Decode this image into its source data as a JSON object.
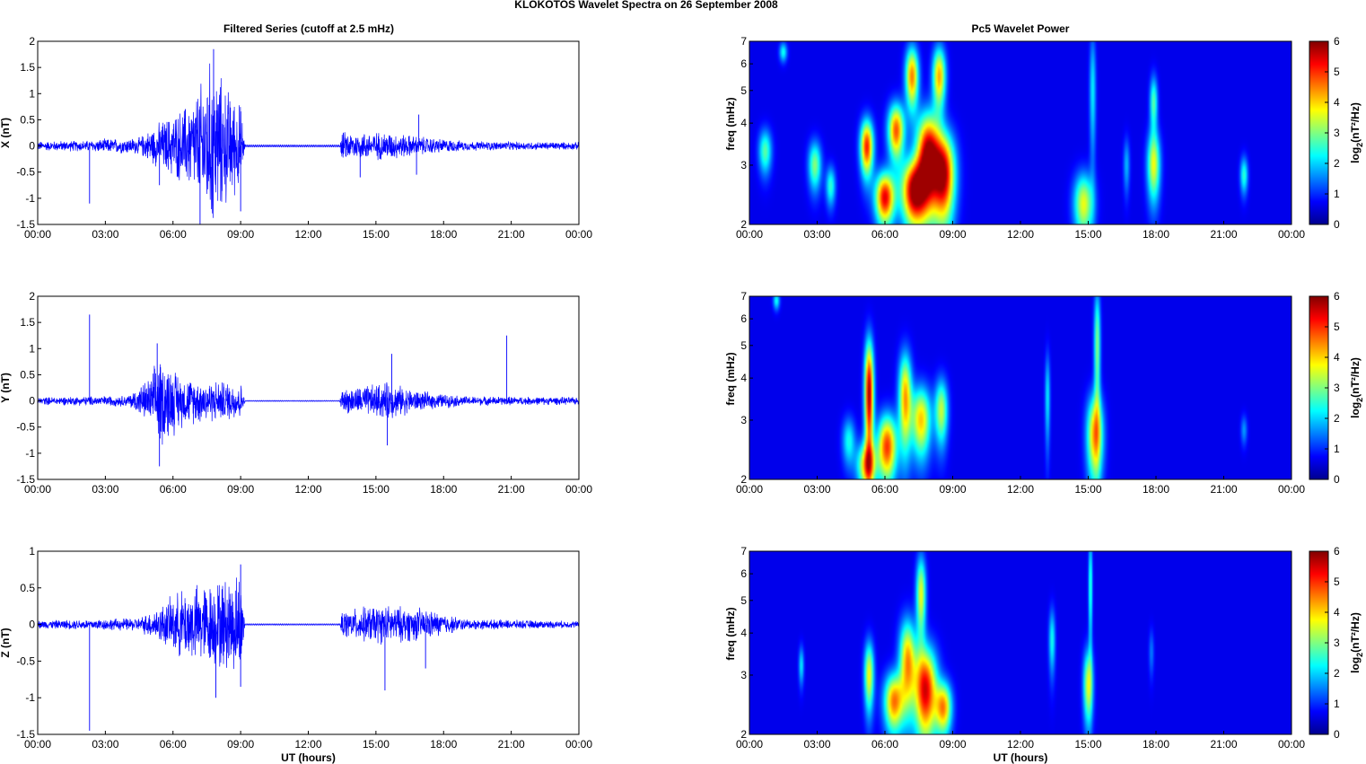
{
  "figure": {
    "title": "KLOKOTOS Wavelet Spectra on 26 September 2008",
    "left_title": "Filtered Series (cutoff at 2.5 mHz)",
    "right_title": "Pc5 Wavelet Power",
    "xlabel": "UT (hours)"
  },
  "colors": {
    "trace": "#0000ff",
    "background": "#ffffff",
    "axes": "#000000"
  },
  "chart_data": [
    {
      "type": "line",
      "title": "Filtered Series (cutoff at 2.5 mHz)",
      "ylabel": "X (nT)",
      "xlabel": "",
      "xlim": [
        0,
        24
      ],
      "ylim": [
        -1.5,
        2
      ],
      "xticks": [
        "00:00",
        "03:00",
        "06:00",
        "09:00",
        "12:00",
        "15:00",
        "18:00",
        "21:00",
        "00:00"
      ],
      "yticks": [
        "-1.5",
        "-1",
        "-0.5",
        "0",
        "0.5",
        "1",
        "1.5",
        "2"
      ],
      "envelope": [
        [
          0,
          0.1
        ],
        [
          2.2,
          0.12
        ],
        [
          3,
          0.15
        ],
        [
          4.5,
          0.18
        ],
        [
          5.4,
          0.5
        ],
        [
          6.4,
          0.8
        ],
        [
          7,
          1.1
        ],
        [
          7.7,
          1.85
        ],
        [
          8.3,
          1.3
        ],
        [
          9,
          0.9
        ],
        [
          9.2,
          0.02
        ],
        [
          13.4,
          0.02
        ],
        [
          13.5,
          0.3
        ],
        [
          14.5,
          0.3
        ],
        [
          15.5,
          0.3
        ],
        [
          17,
          0.2
        ],
        [
          19,
          0.1
        ],
        [
          24,
          0.08
        ]
      ],
      "spikes": [
        {
          "x": 2.3,
          "y": -1.1
        },
        {
          "x": 5.4,
          "y": -0.75
        },
        {
          "x": 7.2,
          "y": -1.5
        },
        {
          "x": 7.8,
          "y": 1.85
        },
        {
          "x": 9.0,
          "y": -1.25
        },
        {
          "x": 14.3,
          "y": -0.6
        },
        {
          "x": 16.9,
          "y": 0.6
        },
        {
          "x": 16.8,
          "y": -0.55
        }
      ]
    },
    {
      "type": "line",
      "ylabel": "Y (nT)",
      "xlabel": "",
      "xlim": [
        0,
        24
      ],
      "ylim": [
        -1.5,
        2
      ],
      "xticks": [
        "00:00",
        "03:00",
        "06:00",
        "09:00",
        "12:00",
        "15:00",
        "18:00",
        "21:00",
        "00:00"
      ],
      "yticks": [
        "-1.5",
        "-1",
        "-0.5",
        "0",
        "0.5",
        "1",
        "1.5",
        "2"
      ],
      "envelope": [
        [
          0,
          0.08
        ],
        [
          2.3,
          0.1
        ],
        [
          4,
          0.12
        ],
        [
          5,
          0.5
        ],
        [
          5.4,
          1.0
        ],
        [
          6.5,
          0.5
        ],
        [
          7.5,
          0.45
        ],
        [
          9,
          0.4
        ],
        [
          9.2,
          0.01
        ],
        [
          13.4,
          0.01
        ],
        [
          13.5,
          0.25
        ],
        [
          15.5,
          0.4
        ],
        [
          17,
          0.2
        ],
        [
          19,
          0.1
        ],
        [
          24,
          0.08
        ]
      ],
      "spikes": [
        {
          "x": 2.3,
          "y": 1.65
        },
        {
          "x": 5.3,
          "y": 1.1
        },
        {
          "x": 5.4,
          "y": -1.25
        },
        {
          "x": 15.5,
          "y": -0.85
        },
        {
          "x": 15.7,
          "y": 0.9
        },
        {
          "x": 20.8,
          "y": 1.25
        }
      ]
    },
    {
      "type": "line",
      "ylabel": "Z (nT)",
      "xlabel": "UT (hours)",
      "xlim": [
        0,
        24
      ],
      "ylim": [
        -1.5,
        1
      ],
      "xticks": [
        "00:00",
        "03:00",
        "06:00",
        "09:00",
        "12:00",
        "15:00",
        "18:00",
        "21:00",
        "00:00"
      ],
      "yticks": [
        "-1.5",
        "-1",
        "-0.5",
        "0",
        "0.5",
        "1"
      ],
      "envelope": [
        [
          0,
          0.06
        ],
        [
          2.2,
          0.08
        ],
        [
          4.5,
          0.1
        ],
        [
          5.5,
          0.3
        ],
        [
          6.5,
          0.55
        ],
        [
          7.8,
          0.65
        ],
        [
          9,
          0.8
        ],
        [
          9.2,
          0.01
        ],
        [
          13.4,
          0.01
        ],
        [
          13.5,
          0.2
        ],
        [
          15,
          0.3
        ],
        [
          17,
          0.25
        ],
        [
          19,
          0.08
        ],
        [
          24,
          0.05
        ]
      ],
      "spikes": [
        {
          "x": 2.3,
          "y": -1.45
        },
        {
          "x": 7.9,
          "y": -1.0
        },
        {
          "x": 9.0,
          "y": 0.82
        },
        {
          "x": 9.0,
          "y": -0.85
        },
        {
          "x": 15.4,
          "y": -0.9
        },
        {
          "x": 17.2,
          "y": -0.6
        }
      ]
    },
    {
      "type": "heatmap",
      "title": "Pc5 Wavelet Power",
      "ylabel": "freq (mHz)",
      "xlabel": "",
      "xlim": [
        0,
        24
      ],
      "ylim": [
        2,
        7
      ],
      "yscale": "log",
      "colormap": "jet",
      "clim": [
        0,
        6
      ],
      "colorbar_label": "log2(nT²/Hz)",
      "colorbar_ticks": [
        "0",
        "1",
        "2",
        "3",
        "4",
        "5",
        "6"
      ],
      "xticks": [
        "00:00",
        "03:00",
        "06:00",
        "09:00",
        "12:00",
        "15:00",
        "18:00",
        "21:00",
        "00:00"
      ],
      "yticks": [
        "2",
        "3",
        "4",
        "5",
        "6",
        "7"
      ],
      "blobs": [
        {
          "x": 0.7,
          "f": 3.3,
          "wx": 0.2,
          "wf": 0.35,
          "p": 2.5
        },
        {
          "x": 1.5,
          "f": 6.5,
          "wx": 0.12,
          "wf": 0.3,
          "p": 2.0
        },
        {
          "x": 2.9,
          "f": 3.0,
          "wx": 0.2,
          "wf": 0.35,
          "p": 2.8
        },
        {
          "x": 3.6,
          "f": 2.6,
          "wx": 0.15,
          "wf": 0.25,
          "p": 2.2
        },
        {
          "x": 5.2,
          "f": 3.4,
          "wx": 0.2,
          "wf": 0.45,
          "p": 5.2
        },
        {
          "x": 6.0,
          "f": 2.4,
          "wx": 0.3,
          "wf": 0.3,
          "p": 5.5
        },
        {
          "x": 6.5,
          "f": 3.8,
          "wx": 0.25,
          "wf": 0.5,
          "p": 4.8
        },
        {
          "x": 7.3,
          "f": 2.5,
          "wx": 0.4,
          "wf": 0.4,
          "p": 6.0
        },
        {
          "x": 7.9,
          "f": 3.2,
          "wx": 0.35,
          "wf": 0.7,
          "p": 6.0
        },
        {
          "x": 8.6,
          "f": 2.8,
          "wx": 0.35,
          "wf": 0.6,
          "p": 5.8
        },
        {
          "x": 7.2,
          "f": 5.5,
          "wx": 0.2,
          "wf": 0.8,
          "p": 4.5
        },
        {
          "x": 8.4,
          "f": 5.5,
          "wx": 0.2,
          "wf": 0.8,
          "p": 4.2
        },
        {
          "x": 14.8,
          "f": 2.3,
          "wx": 0.3,
          "wf": 0.35,
          "p": 3.5
        },
        {
          "x": 15.2,
          "f": 5.0,
          "wx": 0.1,
          "wf": 1.5,
          "p": 1.8
        },
        {
          "x": 17.9,
          "f": 3.0,
          "wx": 0.2,
          "wf": 0.5,
          "p": 3.5
        },
        {
          "x": 17.9,
          "f": 4.6,
          "wx": 0.12,
          "wf": 0.6,
          "p": 2.5
        },
        {
          "x": 21.9,
          "f": 2.8,
          "wx": 0.12,
          "wf": 0.25,
          "p": 2.2
        },
        {
          "x": 16.7,
          "f": 3.0,
          "wx": 0.1,
          "wf": 0.4,
          "p": 1.4
        }
      ]
    },
    {
      "type": "heatmap",
      "ylabel": "freq (mHz)",
      "xlabel": "",
      "xlim": [
        0,
        24
      ],
      "ylim": [
        2,
        7
      ],
      "yscale": "log",
      "colormap": "jet",
      "clim": [
        0,
        6
      ],
      "colorbar_label": "log2(nT²/Hz)",
      "colorbar_ticks": [
        "0",
        "1",
        "2",
        "3",
        "4",
        "5",
        "6"
      ],
      "xticks": [
        "00:00",
        "03:00",
        "06:00",
        "09:00",
        "12:00",
        "15:00",
        "18:00",
        "21:00",
        "00:00"
      ],
      "yticks": [
        "2",
        "3",
        "4",
        "5",
        "6",
        "7"
      ],
      "blobs": [
        {
          "x": 5.3,
          "f": 3.6,
          "wx": 0.14,
          "wf": 1.0,
          "p": 6.0
        },
        {
          "x": 5.2,
          "f": 2.2,
          "wx": 0.3,
          "wf": 0.25,
          "p": 4.0
        },
        {
          "x": 6.1,
          "f": 2.5,
          "wx": 0.3,
          "wf": 0.4,
          "p": 5.0
        },
        {
          "x": 6.9,
          "f": 3.5,
          "wx": 0.2,
          "wf": 0.8,
          "p": 4.2
        },
        {
          "x": 7.6,
          "f": 3.0,
          "wx": 0.3,
          "wf": 0.5,
          "p": 4.0
        },
        {
          "x": 8.5,
          "f": 3.2,
          "wx": 0.2,
          "wf": 0.5,
          "p": 3.2
        },
        {
          "x": 4.4,
          "f": 2.6,
          "wx": 0.2,
          "wf": 0.3,
          "p": 2.0
        },
        {
          "x": 15.3,
          "f": 2.7,
          "wx": 0.25,
          "wf": 0.55,
          "p": 4.2
        },
        {
          "x": 15.4,
          "f": 5.0,
          "wx": 0.1,
          "wf": 1.5,
          "p": 2.8
        },
        {
          "x": 13.2,
          "f": 3.5,
          "wx": 0.08,
          "wf": 0.8,
          "p": 1.8
        },
        {
          "x": 1.2,
          "f": 6.8,
          "wx": 0.1,
          "wf": 0.3,
          "p": 2.0
        },
        {
          "x": 21.9,
          "f": 2.8,
          "wx": 0.1,
          "wf": 0.2,
          "p": 1.2
        }
      ]
    },
    {
      "type": "heatmap",
      "ylabel": "freq (mHz)",
      "xlabel": "UT (hours)",
      "xlim": [
        0,
        24
      ],
      "ylim": [
        2,
        7
      ],
      "yscale": "log",
      "colormap": "jet",
      "clim": [
        0,
        6
      ],
      "colorbar_label": "log2(nT²/Hz)",
      "colorbar_ticks": [
        "0",
        "1",
        "2",
        "3",
        "4",
        "5",
        "6"
      ],
      "xticks": [
        "00:00",
        "03:00",
        "06:00",
        "09:00",
        "12:00",
        "15:00",
        "18:00",
        "21:00",
        "00:00"
      ],
      "yticks": [
        "2",
        "3",
        "4",
        "5",
        "6",
        "7"
      ],
      "blobs": [
        {
          "x": 5.3,
          "f": 3.0,
          "wx": 0.15,
          "wf": 0.5,
          "p": 3.6
        },
        {
          "x": 6.4,
          "f": 2.5,
          "wx": 0.3,
          "wf": 0.35,
          "p": 4.5
        },
        {
          "x": 7.0,
          "f": 3.3,
          "wx": 0.25,
          "wf": 0.7,
          "p": 4.2
        },
        {
          "x": 7.8,
          "f": 2.7,
          "wx": 0.35,
          "wf": 0.6,
          "p": 5.6
        },
        {
          "x": 8.6,
          "f": 2.4,
          "wx": 0.25,
          "wf": 0.3,
          "p": 4.2
        },
        {
          "x": 7.6,
          "f": 5.2,
          "wx": 0.15,
          "wf": 1.0,
          "p": 3.5
        },
        {
          "x": 2.3,
          "f": 3.2,
          "wx": 0.08,
          "wf": 0.3,
          "p": 1.8
        },
        {
          "x": 15.0,
          "f": 2.8,
          "wx": 0.15,
          "wf": 0.5,
          "p": 3.4
        },
        {
          "x": 15.1,
          "f": 5.5,
          "wx": 0.06,
          "wf": 1.5,
          "p": 2.4
        },
        {
          "x": 13.4,
          "f": 3.8,
          "wx": 0.1,
          "wf": 0.6,
          "p": 2.0
        },
        {
          "x": 17.8,
          "f": 3.5,
          "wx": 0.08,
          "wf": 0.4,
          "p": 1.0
        }
      ]
    }
  ]
}
